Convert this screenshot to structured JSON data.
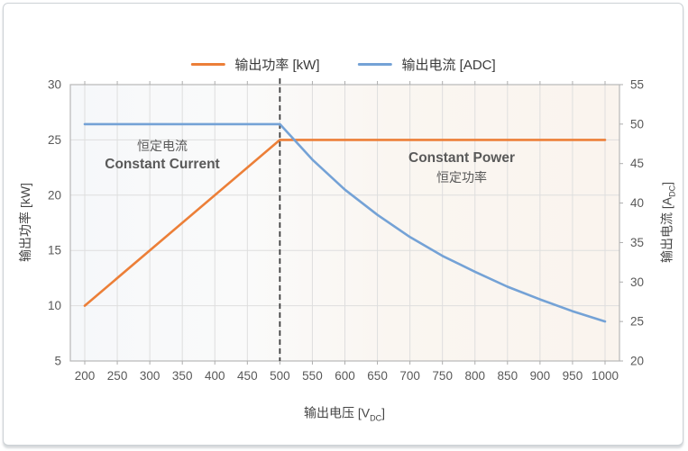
{
  "legend": {
    "items": [
      {
        "label": "输出功率 [kW]",
        "color": "#EC7F38"
      },
      {
        "label": "输出电流 [ADC]",
        "color": "#74A2D6"
      }
    ]
  },
  "axes": {
    "x": {
      "title_prefix": "输出电压 [V",
      "title_sub": "DC",
      "title_suffix": "]",
      "range": [
        200,
        1000
      ],
      "ticks": [
        200,
        250,
        300,
        350,
        400,
        450,
        500,
        550,
        600,
        650,
        700,
        750,
        800,
        850,
        900,
        950,
        1000
      ]
    },
    "y_left": {
      "title": "输出功率 [kW]",
      "range": [
        5,
        30
      ],
      "ticks": [
        5,
        10,
        15,
        20,
        25,
        30
      ]
    },
    "y_right": {
      "title_prefix": "输出电流 [A",
      "title_sub": "DC",
      "title_suffix": "]",
      "range": [
        20,
        55
      ],
      "ticks": [
        20,
        25,
        30,
        35,
        40,
        45,
        50,
        55
      ]
    }
  },
  "annotations": [
    {
      "line1": "恒定电流",
      "line2": "Constant Current"
    },
    {
      "line1": "Constant Power",
      "line2": "恒定功率"
    }
  ],
  "chart_data": {
    "type": "line",
    "title": "",
    "xlabel": "输出电压 [VDC]",
    "ylabel_left": "输出功率 [kW]",
    "ylabel_right": "输出电流 [ADC]",
    "xlim": [
      200,
      1000
    ],
    "ylim_left": [
      5,
      30
    ],
    "ylim_right": [
      20,
      55
    ],
    "grid": true,
    "legend_position": "top-center",
    "threshold_x": 500,
    "threshold_color": "#3d3d3d",
    "series": [
      {
        "name": "输出功率 [kW]",
        "y_axis": "left",
        "color": "#EC7F38",
        "points": [
          [
            200,
            10
          ],
          [
            500,
            25
          ],
          [
            1000,
            25
          ]
        ]
      },
      {
        "name": "输出电流 [ADC]",
        "y_axis": "right",
        "color": "#74A2D6",
        "points": [
          [
            200,
            50
          ],
          [
            500,
            50
          ],
          [
            550,
            45.5
          ],
          [
            600,
            41.7
          ],
          [
            650,
            38.5
          ],
          [
            700,
            35.7
          ],
          [
            750,
            33.3
          ],
          [
            800,
            31.3
          ],
          [
            850,
            29.4
          ],
          [
            900,
            27.8
          ],
          [
            950,
            26.3
          ],
          [
            1000,
            25
          ]
        ]
      }
    ]
  }
}
